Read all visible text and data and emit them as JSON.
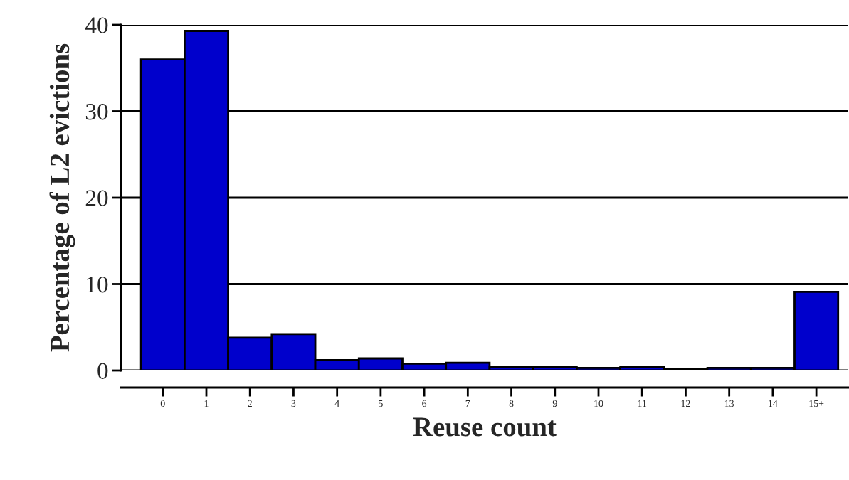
{
  "chart_data": {
    "type": "bar",
    "xlabel": "Reuse count",
    "ylabel": "Percentage of L2 evictions",
    "categories": [
      "0",
      "1",
      "2",
      "3",
      "4",
      "5",
      "6",
      "7",
      "8",
      "9",
      "10",
      "11",
      "12",
      "13",
      "14",
      "15+"
    ],
    "values": [
      36.0,
      39.3,
      3.8,
      4.2,
      1.2,
      1.4,
      0.8,
      0.9,
      0.4,
      0.4,
      0.3,
      0.4,
      0.2,
      0.3,
      0.3,
      9.1
    ],
    "color": "#0000cc",
    "ylim": [
      0,
      40
    ],
    "yticks": [
      0,
      10,
      20,
      30,
      40
    ],
    "grid": "y"
  }
}
